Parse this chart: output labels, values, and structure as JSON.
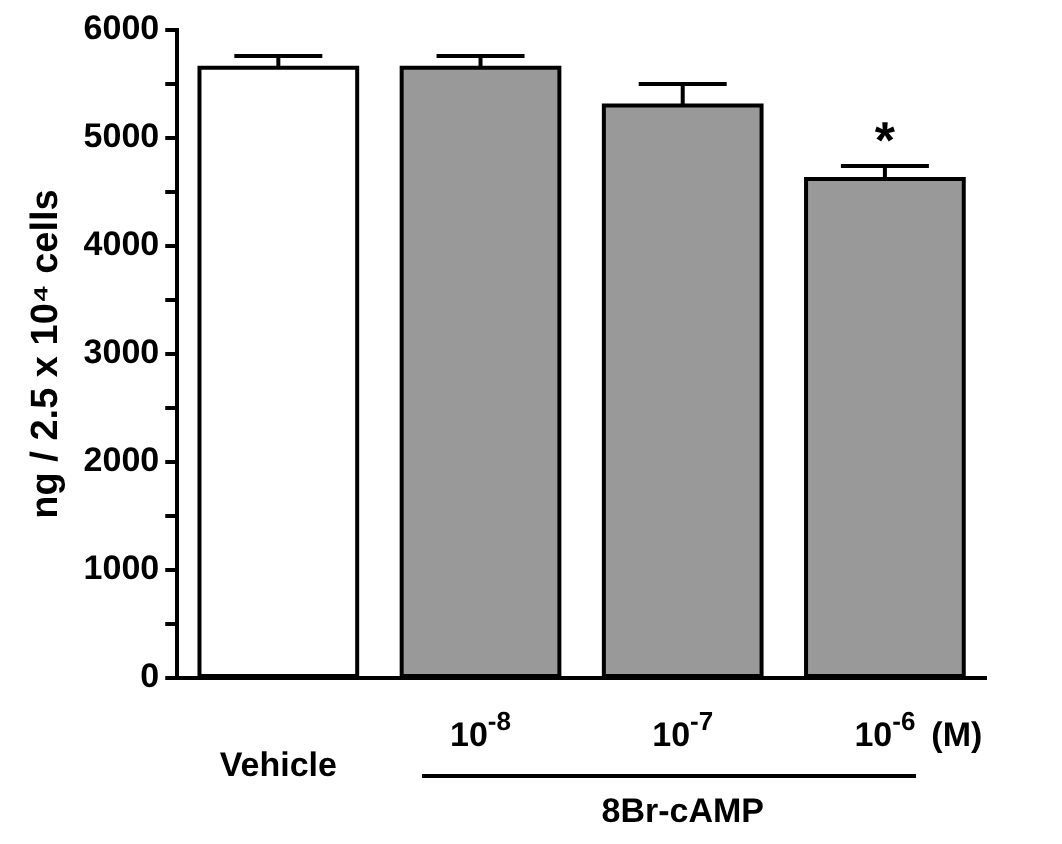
{
  "chart_data": {
    "type": "bar",
    "ylabel": "ng / 2.5 x 10⁴ cells",
    "categories": [
      "Vehicle",
      "10$^{-8}$",
      "10$^{-7}$",
      "10$^{-6}$"
    ],
    "values": [
      5650,
      5650,
      5300,
      4620
    ],
    "errors": [
      110,
      110,
      200,
      120
    ],
    "colors": [
      "#ffffff",
      "#999999",
      "#999999",
      "#999999"
    ],
    "ylim": [
      0,
      6000
    ],
    "yticks": [
      0,
      {
        "value": 500,
        "label": null
      },
      1000,
      {
        "value": 1500,
        "label": null
      },
      2000,
      {
        "value": 2500,
        "label": null
      },
      3000,
      {
        "value": 3500,
        "label": null
      },
      4000,
      {
        "value": 4500,
        "label": null
      },
      5000,
      {
        "value": 5500,
        "label": null
      },
      6000
    ],
    "grid": false,
    "legend": false,
    "annotations": [
      "*",
      "(M)",
      "8Br-cAMP"
    ]
  }
}
